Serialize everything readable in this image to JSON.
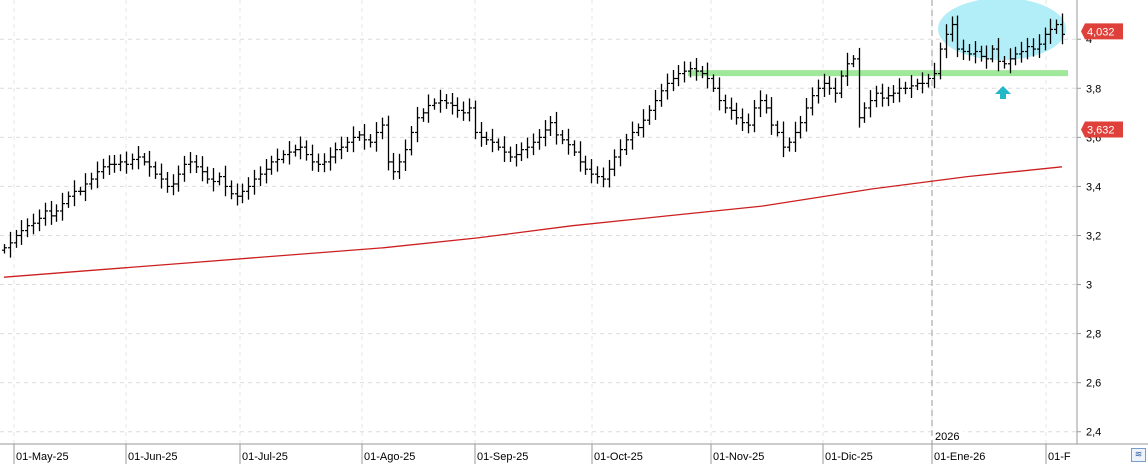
{
  "chart_data": {
    "type": "ohlc",
    "y_range": [
      2.35,
      4.16
    ],
    "y_ticks": [
      "2,4",
      "2,6",
      "2,8",
      "3",
      "3,2",
      "3,4",
      "3,6",
      "3,8",
      "4"
    ],
    "x_labels": [
      "01-May-25",
      "01-Jun-25",
      "01-Jul-25",
      "01-Ago-25",
      "01-Sep-25",
      "01-Oct-25",
      "01-Nov-25",
      "01-Dic-25",
      "01-Ene-26",
      "01-F"
    ],
    "year_marker": "2026",
    "price_tags": [
      {
        "label": "4,032",
        "value": 4.032,
        "color": "#e0403a"
      },
      {
        "label": "3,632",
        "value": 3.632,
        "color": "#e0403a"
      }
    ],
    "series": [
      {
        "type": "ohlc",
        "color": "#000000",
        "closes": [
          3.15,
          3.17,
          3.2,
          3.22,
          3.24,
          3.25,
          3.27,
          3.3,
          3.28,
          3.3,
          3.33,
          3.36,
          3.38,
          3.38,
          3.41,
          3.43,
          3.46,
          3.48,
          3.49,
          3.49,
          3.5,
          3.49,
          3.51,
          3.52,
          3.5,
          3.48,
          3.45,
          3.43,
          3.4,
          3.41,
          3.45,
          3.49,
          3.5,
          3.48,
          3.46,
          3.43,
          3.42,
          3.44,
          3.4,
          3.37,
          3.36,
          3.38,
          3.4,
          3.43,
          3.45,
          3.47,
          3.5,
          3.51,
          3.53,
          3.54,
          3.55,
          3.56,
          3.53,
          3.5,
          3.49,
          3.5,
          3.52,
          3.55,
          3.56,
          3.58,
          3.6,
          3.61,
          3.59,
          3.58,
          3.62,
          3.65,
          3.5,
          3.46,
          3.5,
          3.55,
          3.62,
          3.68,
          3.7,
          3.73,
          3.74,
          3.75,
          3.74,
          3.73,
          3.71,
          3.7,
          3.72,
          3.62,
          3.6,
          3.59,
          3.58,
          3.56,
          3.54,
          3.52,
          3.53,
          3.55,
          3.56,
          3.58,
          3.6,
          3.63,
          3.66,
          3.61,
          3.59,
          3.57,
          3.54,
          3.5,
          3.47,
          3.45,
          3.44,
          3.43,
          3.47,
          3.52,
          3.55,
          3.59,
          3.62,
          3.64,
          3.67,
          3.71,
          3.75,
          3.79,
          3.82,
          3.84,
          3.86,
          3.87,
          3.88,
          3.87,
          3.86,
          3.84,
          3.8,
          3.75,
          3.72,
          3.71,
          3.68,
          3.66,
          3.65,
          3.72,
          3.75,
          3.72,
          3.65,
          3.62,
          3.56,
          3.58,
          3.62,
          3.66,
          3.72,
          3.77,
          3.8,
          3.82,
          3.8,
          3.78,
          3.85,
          3.9,
          3.92,
          3.68,
          3.72,
          3.75,
          3.78,
          3.76,
          3.77,
          3.78,
          3.8,
          3.8,
          3.81,
          3.82,
          3.82,
          3.84,
          3.86,
          3.96,
          4.02,
          4.06,
          3.96,
          3.95,
          3.94,
          3.95,
          3.93,
          3.92,
          3.96,
          3.91,
          3.9,
          3.92,
          3.94,
          3.95,
          3.97,
          3.96,
          3.98,
          4.02,
          4.04,
          4.06,
          4.02
        ]
      },
      {
        "type": "line",
        "color": "#cc1f1f",
        "x_days": [
          0,
          60,
          120,
          180,
          240,
          300,
          360,
          420,
          480,
          550,
          610,
          670
        ],
        "values": [
          3.03,
          3.06,
          3.09,
          3.12,
          3.15,
          3.19,
          3.24,
          3.28,
          3.32,
          3.39,
          3.44,
          3.48
        ]
      }
    ],
    "annotations": {
      "support_line": {
        "value": 3.862,
        "color": "#9fe89a"
      },
      "highlight_ellipse": {
        "color": "#a8ecf7"
      },
      "arrow": {
        "color": "#22b8c8",
        "direction": "up"
      }
    }
  },
  "corner_button": {
    "glyph": "≋"
  }
}
